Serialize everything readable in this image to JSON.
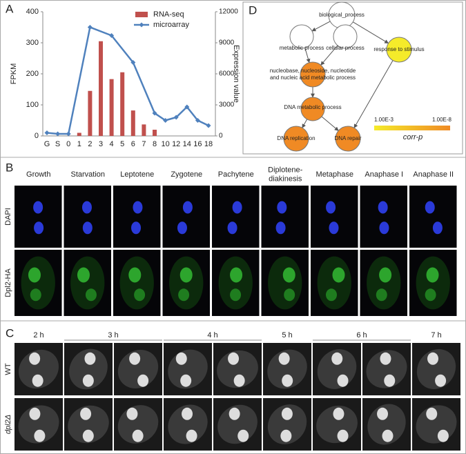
{
  "panel_labels": [
    "A",
    "B",
    "C",
    "D"
  ],
  "chart_data": {
    "type": "bar",
    "categories": [
      "G",
      "S",
      "0",
      "1",
      "2",
      "3",
      "4",
      "5",
      "6",
      "7",
      "8",
      "10",
      "12",
      "14",
      "16",
      "18"
    ],
    "ylabel": "FPKM",
    "y2label": "Expression value",
    "ylim": [
      0,
      400
    ],
    "yticks": [
      0,
      100,
      200,
      300,
      400
    ],
    "y2lim": [
      0,
      12000
    ],
    "y2ticks": [
      0,
      3000,
      6000,
      9000,
      12000
    ],
    "series": [
      {
        "name": "RNA-seq",
        "type": "bar",
        "color": "#c0504d",
        "values": [
          null,
          null,
          null,
          10,
          145,
          305,
          183,
          205,
          82,
          37,
          20,
          null,
          null,
          null,
          null,
          null
        ]
      },
      {
        "name": "microarray",
        "type": "line",
        "axis": "y2",
        "color": "#4f81bd",
        "x": [
          "G",
          "S",
          "0",
          "2",
          "4",
          "6",
          "8",
          "10",
          "12",
          "14",
          "16",
          "18"
        ],
        "values": [
          300,
          200,
          200,
          10500,
          9700,
          7100,
          2200,
          1500,
          1800,
          2800,
          1500,
          1000
        ]
      }
    ]
  },
  "go_diagram": {
    "nodes": [
      {
        "label": [
          "biological_process"
        ],
        "color": "#ffffff"
      },
      {
        "label": [
          "metabolic process"
        ],
        "color": "#ffffff"
      },
      {
        "label": [
          "cellular process"
        ],
        "color": "#ffffff"
      },
      {
        "label": [
          "response to stimulus"
        ],
        "color": "#f5eb2a"
      },
      {
        "label": [
          "nucleobase, nucleoside, nucleotide",
          "and nucleic acid metabolic process"
        ],
        "color": "#f08a24"
      },
      {
        "label": [
          "DNA metabolic process"
        ],
        "color": "#f08a24"
      },
      {
        "label": [
          "DNA replication"
        ],
        "color": "#f08a24"
      },
      {
        "label": [
          "DNA repair"
        ],
        "color": "#f08a24"
      }
    ],
    "legend": {
      "low": "1.00E-3",
      "high": "1.00E-8",
      "title": "corr-p"
    }
  },
  "panel_b": {
    "columns": [
      "Growth",
      "Starvation",
      "Leptotene",
      "Zygotene",
      "Pachytene",
      [
        "Diplotene-",
        "diakinesis"
      ],
      "Metaphase",
      "Anaphase I",
      "Anaphase II"
    ],
    "rows": [
      "DAPI",
      "Dpl2-HA"
    ]
  },
  "panel_c": {
    "times": [
      "2 h",
      "3 h",
      "4 h",
      "5 h",
      "6 h",
      "7 h"
    ],
    "rows": [
      "WT",
      "dpl2Δ"
    ]
  }
}
